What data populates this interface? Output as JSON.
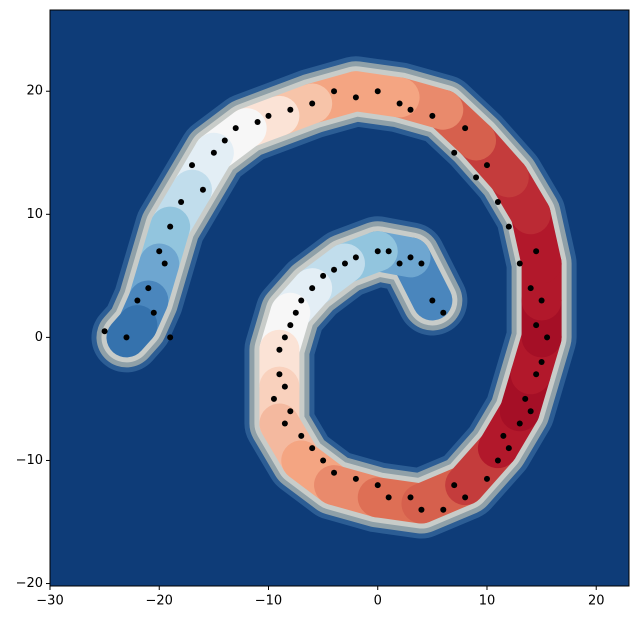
{
  "chart_data": {
    "type": "scatter",
    "xlim": [
      -30,
      23
    ],
    "ylim": [
      -20.2,
      26.6
    ],
    "xticks": [
      {
        "value": -30,
        "label": "−30"
      },
      {
        "value": -20,
        "label": "−20"
      },
      {
        "value": -10,
        "label": "−10"
      },
      0,
      10,
      20
    ],
    "yticks": [
      {
        "value": -20,
        "label": "−20"
      },
      {
        "value": -10,
        "label": "−10"
      },
      0,
      10,
      20
    ],
    "background": "#0e3c78",
    "series": [
      {
        "color": "#000000",
        "x": [
          5,
          6,
          4,
          3,
          1,
          2,
          0,
          -2,
          -3,
          -4,
          -5,
          -6,
          -7,
          -7.5,
          -8,
          -8.5,
          -9,
          -9,
          -8.5,
          -9.5,
          -8,
          -8.5,
          -7,
          -6,
          -5,
          -4,
          -2,
          0,
          1,
          3,
          4,
          6,
          7,
          8,
          10,
          11,
          12,
          11.5,
          13,
          14,
          13.5,
          14.5,
          15,
          15.5,
          14.5,
          15,
          14,
          13,
          14.5,
          12,
          11,
          9,
          10,
          7,
          8,
          5,
          3,
          2,
          0,
          -2,
          -4,
          -6,
          -8,
          -10,
          -11,
          -13,
          -15,
          -14,
          -17,
          -16,
          -18,
          -19,
          -20,
          -19.5,
          -21,
          -20.5,
          -22,
          -23,
          -25,
          -19
        ],
        "values": [
          3,
          2,
          6,
          6.5,
          7,
          6,
          7,
          6.5,
          6,
          5.5,
          5,
          4,
          3,
          2,
          1,
          0,
          -1,
          -3,
          -4,
          -5,
          -6,
          -7,
          -8,
          -9,
          -10,
          -11,
          -11.5,
          -12,
          -13,
          -13,
          -14,
          -14,
          -12,
          -13,
          -11.5,
          -10,
          -9,
          -8,
          -7,
          -6,
          -5,
          -3,
          -2,
          0,
          1,
          3,
          4,
          6,
          7,
          9,
          11,
          13,
          14,
          15,
          17,
          18,
          18.5,
          19,
          20,
          19.5,
          20,
          19,
          18.5,
          18,
          17.5,
          17,
          15,
          16,
          14,
          12,
          11,
          9,
          7,
          6,
          4,
          2,
          3,
          0,
          0.5,
          0
        ]
      }
    ]
  }
}
